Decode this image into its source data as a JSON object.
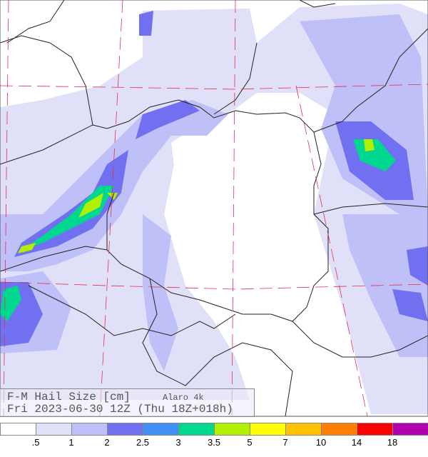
{
  "title": {
    "product": "F-M Hail Size [cm]",
    "model": "Alaro 4k",
    "valid": "Fri 2023-06-30 12Z (Thu 18Z+018h)"
  },
  "legend": {
    "colors": [
      "#ffffff",
      "#e0e0f8",
      "#c0c0f8",
      "#7070f0",
      "#4090f8",
      "#00d890",
      "#b0f000",
      "#ffff00",
      "#ffc000",
      "#ff8000",
      "#ff0000",
      "#b000b0"
    ],
    "labels": [
      ".5",
      "1",
      "2",
      "2.5",
      "3",
      "3.5",
      "5",
      "7",
      "10",
      "14",
      "18"
    ]
  }
}
